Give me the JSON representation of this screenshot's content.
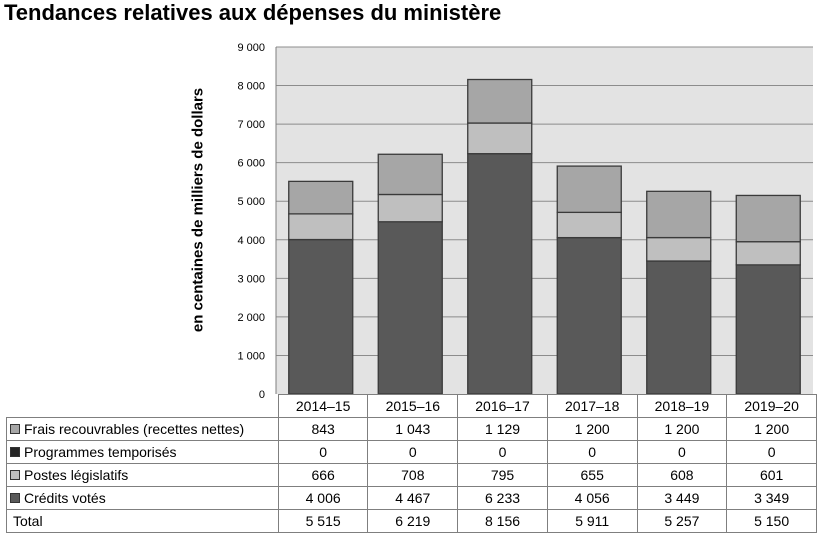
{
  "chart_data": {
    "type": "bar",
    "stacked": true,
    "title": "Tendances relatives aux dépenses du ministère",
    "ylabel": "en centaines de milliers de dollars",
    "ylim": [
      0,
      9000
    ],
    "yticks": [
      "0",
      "1 000",
      "2 000",
      "3 000",
      "4 000",
      "5 000",
      "6 000",
      "7 000",
      "8 000",
      "9 000"
    ],
    "grid": true,
    "categories": [
      "2014–15",
      "2015–16",
      "2016–17",
      "2017–18",
      "2018–19",
      "2019–20"
    ],
    "series": [
      {
        "name": "Frais recouvrables (recettes nettes)",
        "color": "#a6a6a6",
        "values": [
          843,
          1043,
          1129,
          1200,
          1200,
          1200
        ],
        "labels": [
          "843",
          "1 043",
          "1 129",
          "1 200",
          "1 200",
          "1 200"
        ]
      },
      {
        "name": "Programmes temporisés",
        "color": "#262626",
        "values": [
          0,
          0,
          0,
          0,
          0,
          0
        ],
        "labels": [
          "0",
          "0",
          "0",
          "0",
          "0",
          "0"
        ]
      },
      {
        "name": "Postes législatifs",
        "color": "#bfbfbf",
        "values": [
          666,
          708,
          795,
          655,
          608,
          601
        ],
        "labels": [
          "666",
          "708",
          "795",
          "655",
          "608",
          "601"
        ]
      },
      {
        "name": "Crédits votés",
        "color": "#595959",
        "values": [
          4006,
          4467,
          6233,
          4056,
          3449,
          3349
        ],
        "labels": [
          "4 006",
          "4 467",
          "6 233",
          "4 056",
          "3 449",
          "3 349"
        ]
      }
    ],
    "total": {
      "name": "Total",
      "values": [
        5515,
        6219,
        8156,
        5911,
        5257,
        5150
      ],
      "labels": [
        "5 515",
        "6 219",
        "8 156",
        "5 911",
        "5 257",
        "5 150"
      ]
    }
  }
}
